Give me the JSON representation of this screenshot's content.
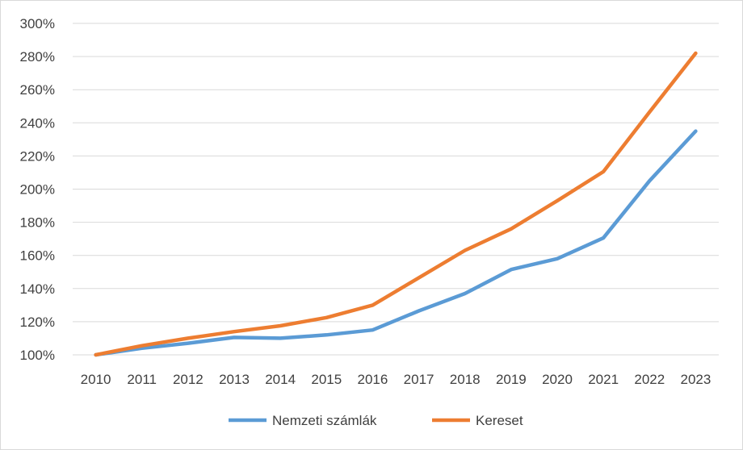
{
  "chart_data": {
    "type": "line",
    "title": "",
    "xlabel": "",
    "ylabel": "",
    "x": [
      "2010",
      "2011",
      "2012",
      "2013",
      "2014",
      "2015",
      "2016",
      "2017",
      "2018",
      "2019",
      "2020",
      "2021",
      "2022",
      "2023"
    ],
    "ylim": [
      100,
      300
    ],
    "y_ticks": [
      100,
      120,
      140,
      160,
      180,
      200,
      220,
      240,
      260,
      280,
      300
    ],
    "y_tick_labels": [
      "100%",
      "120%",
      "140%",
      "160%",
      "180%",
      "200%",
      "220%",
      "240%",
      "260%",
      "280%",
      "300%"
    ],
    "grid": true,
    "legend_position": "bottom",
    "series": [
      {
        "name": "Nemzeti számlák",
        "color": "#5b9bd5",
        "values": [
          100,
          104,
          107,
          110.5,
          110,
          112,
          115,
          126.5,
          137,
          151.5,
          158,
          170.5,
          205,
          235
        ]
      },
      {
        "name": "Kereset",
        "color": "#ed7d31",
        "values": [
          100,
          105.5,
          110,
          114,
          117.5,
          122.5,
          130,
          146.5,
          163,
          176,
          193,
          210.5,
          246.5,
          282
        ]
      }
    ]
  }
}
